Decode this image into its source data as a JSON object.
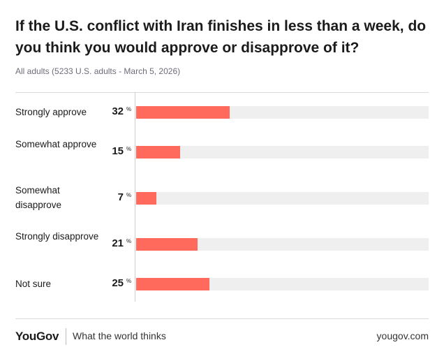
{
  "title": "If the U.S. conflict with Iran finishes in less than a week, do you think you would approve or disapprove of it?",
  "subtitle": "All adults (5233 U.S. adults - March 5, 2026)",
  "percent_symbol": "%",
  "colors": {
    "bar_fill": "#ff6a5c",
    "bar_track": "#efefef"
  },
  "chart_data": {
    "type": "bar",
    "orientation": "horizontal",
    "title": "If the U.S. conflict with Iran finishes in less than a week, do you think you would approve or disapprove of it?",
    "categories": [
      "Strongly approve",
      "Somewhat approve",
      "Somewhat disapprove",
      "Strongly disapprove",
      "Not sure"
    ],
    "values": [
      32,
      15,
      7,
      21,
      25
    ],
    "unit": "%",
    "xlim": [
      0,
      100
    ],
    "grid": false
  },
  "footer": {
    "brand": "YouGov",
    "tagline": "What the world thinks",
    "url": "yougov.com"
  }
}
